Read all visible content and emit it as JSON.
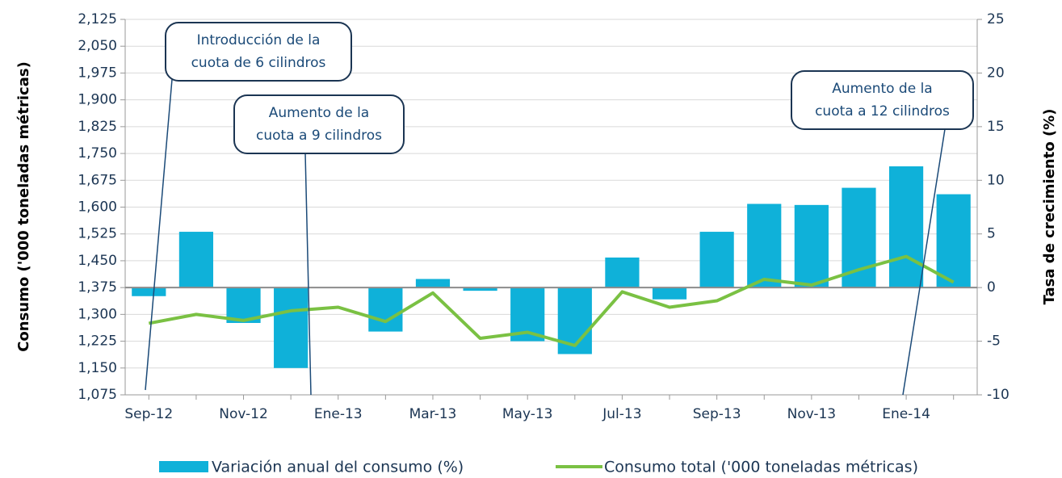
{
  "chart_data": {
    "type": "bar_line",
    "y_label": "Consumo ('000 toneladas métricas)",
    "y2_label": "Tasa de crecimiento (%)",
    "categories": [
      "Sep-12",
      null,
      "Nov-12",
      null,
      "Ene-13",
      null,
      "Mar-13",
      null,
      "May-13",
      null,
      "Jul-13",
      null,
      "Sep-13",
      null,
      "Nov-13",
      null,
      "Ene-14",
      null
    ],
    "series": [
      {
        "name": "Variación anual del consumo (%)",
        "type": "bar",
        "axis": "y2",
        "color": "#0fb1d9",
        "values": [
          -0.8,
          5.2,
          -3.3,
          -7.5,
          null,
          -4.1,
          0.8,
          -0.3,
          -5.0,
          -6.2,
          2.8,
          -1.1,
          5.2,
          7.8,
          7.7,
          9.3,
          11.3,
          8.7
        ]
      },
      {
        "name": "Consumo total ('000 toneladas métricas)",
        "type": "line",
        "axis": "y",
        "color": "#7ac143",
        "values": [
          1275,
          1300,
          1283,
          1310,
          1320,
          1280,
          1360,
          1233,
          1250,
          1213,
          1363,
          1320,
          1338,
          1398,
          1382,
          1425,
          1462,
          1390
        ]
      }
    ],
    "ylim": [
      1075,
      2125
    ],
    "yticks": [
      {
        "value": 1075,
        "label": "1,075"
      },
      {
        "value": 1150,
        "label": "1,150"
      },
      {
        "value": 1225,
        "label": "1,225"
      },
      {
        "value": 1300,
        "label": "1,300"
      },
      {
        "value": 1375,
        "label": "1,375"
      },
      {
        "value": 1450,
        "label": "1,450"
      },
      {
        "value": 1525,
        "label": "1,525"
      },
      {
        "value": 1600,
        "label": "1,600"
      },
      {
        "value": 1675,
        "label": "1,675"
      },
      {
        "value": 1750,
        "label": "1,750"
      },
      {
        "value": 1825,
        "label": "1,825"
      },
      {
        "value": 1900,
        "label": "1,900"
      },
      {
        "value": 1975,
        "label": "1,975"
      },
      {
        "value": 2050,
        "label": "2,050"
      },
      {
        "value": 2125,
        "label": "2,125"
      }
    ],
    "y2lim": [
      -10,
      25
    ],
    "y2ticks": [
      -10,
      -5,
      0,
      5,
      10,
      15,
      20,
      25
    ],
    "grid": true,
    "legend": "bottom",
    "annotations": [
      {
        "lines": [
          "Introducción de la",
          "cuota de 6 cilindros"
        ]
      },
      {
        "lines": [
          "Aumento de la",
          "cuota a 9 cilindros"
        ]
      },
      {
        "lines": [
          "Aumento de la",
          "cuota a 12 cilindros"
        ]
      }
    ]
  }
}
